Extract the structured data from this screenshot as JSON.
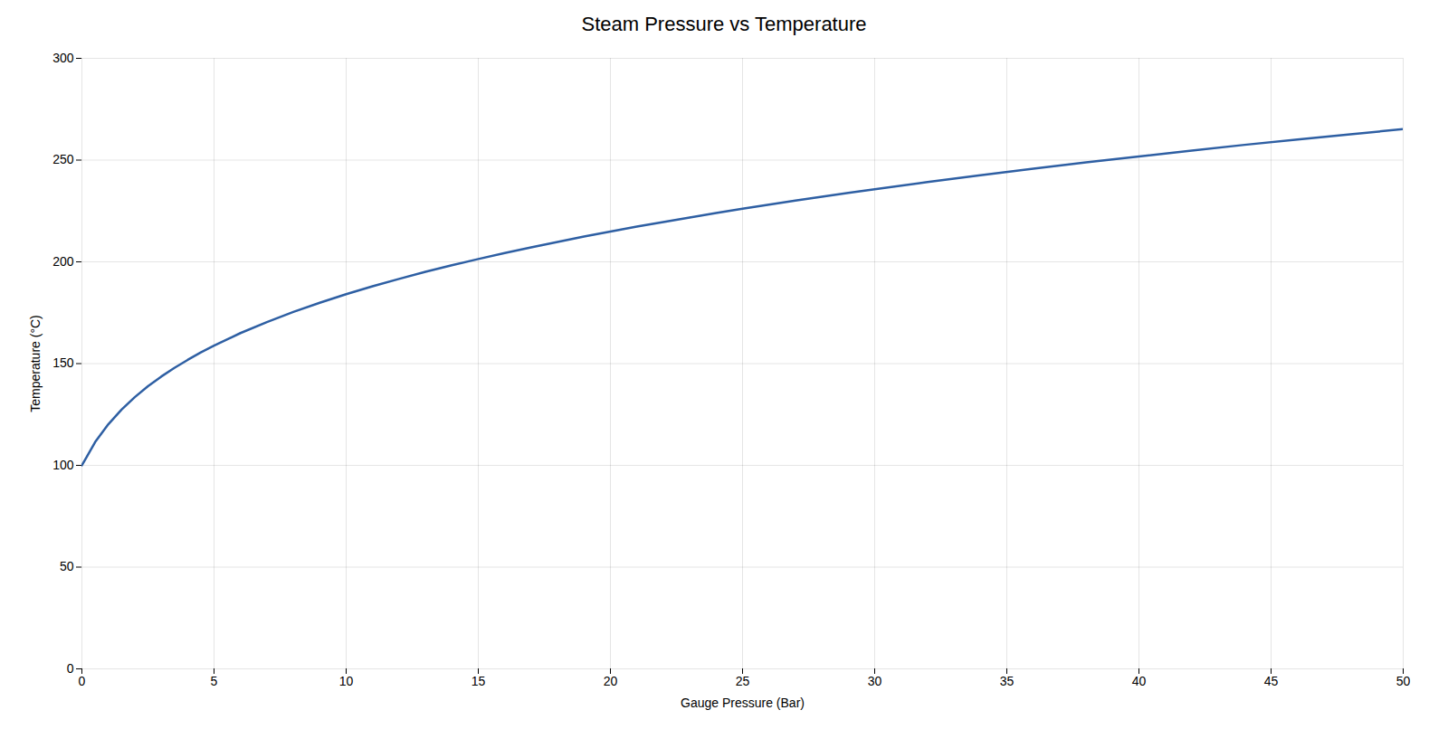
{
  "chart_data": {
    "type": "line",
    "title": "Steam Pressure vs Temperature",
    "xlabel": "Gauge Pressure (Bar)",
    "ylabel": "Temperature (°C)",
    "x": [
      0,
      0.5,
      1,
      1.5,
      2,
      2.5,
      3,
      3.5,
      4,
      4.5,
      5,
      6,
      7,
      8,
      9,
      10,
      11,
      12,
      13,
      14,
      15,
      16,
      17,
      18,
      19,
      20,
      21,
      22,
      23,
      24,
      25,
      26,
      27,
      28,
      29,
      30,
      32,
      34,
      36,
      38,
      40,
      42,
      44,
      46,
      48,
      50
    ],
    "values": [
      100.0,
      111.4,
      120.2,
      127.4,
      133.5,
      138.9,
      143.6,
      147.9,
      151.8,
      155.5,
      158.8,
      165.0,
      170.4,
      175.4,
      179.9,
      184.1,
      188.0,
      191.6,
      195.1,
      198.3,
      201.4,
      204.3,
      207.1,
      209.8,
      212.4,
      214.9,
      217.3,
      219.6,
      221.8,
      224.0,
      226.1,
      228.1,
      230.1,
      232.0,
      233.9,
      235.7,
      239.2,
      242.6,
      245.8,
      248.9,
      251.8,
      254.7,
      257.5,
      260.1,
      262.7,
      265.2
    ],
    "color": "#2E5FA3",
    "xlim": [
      0,
      50
    ],
    "ylim": [
      0,
      300
    ],
    "xticks": [
      0,
      5,
      10,
      15,
      20,
      25,
      30,
      35,
      40,
      45,
      50
    ],
    "yticks": [
      0,
      50,
      100,
      150,
      200,
      250,
      300
    ],
    "grid": true
  }
}
